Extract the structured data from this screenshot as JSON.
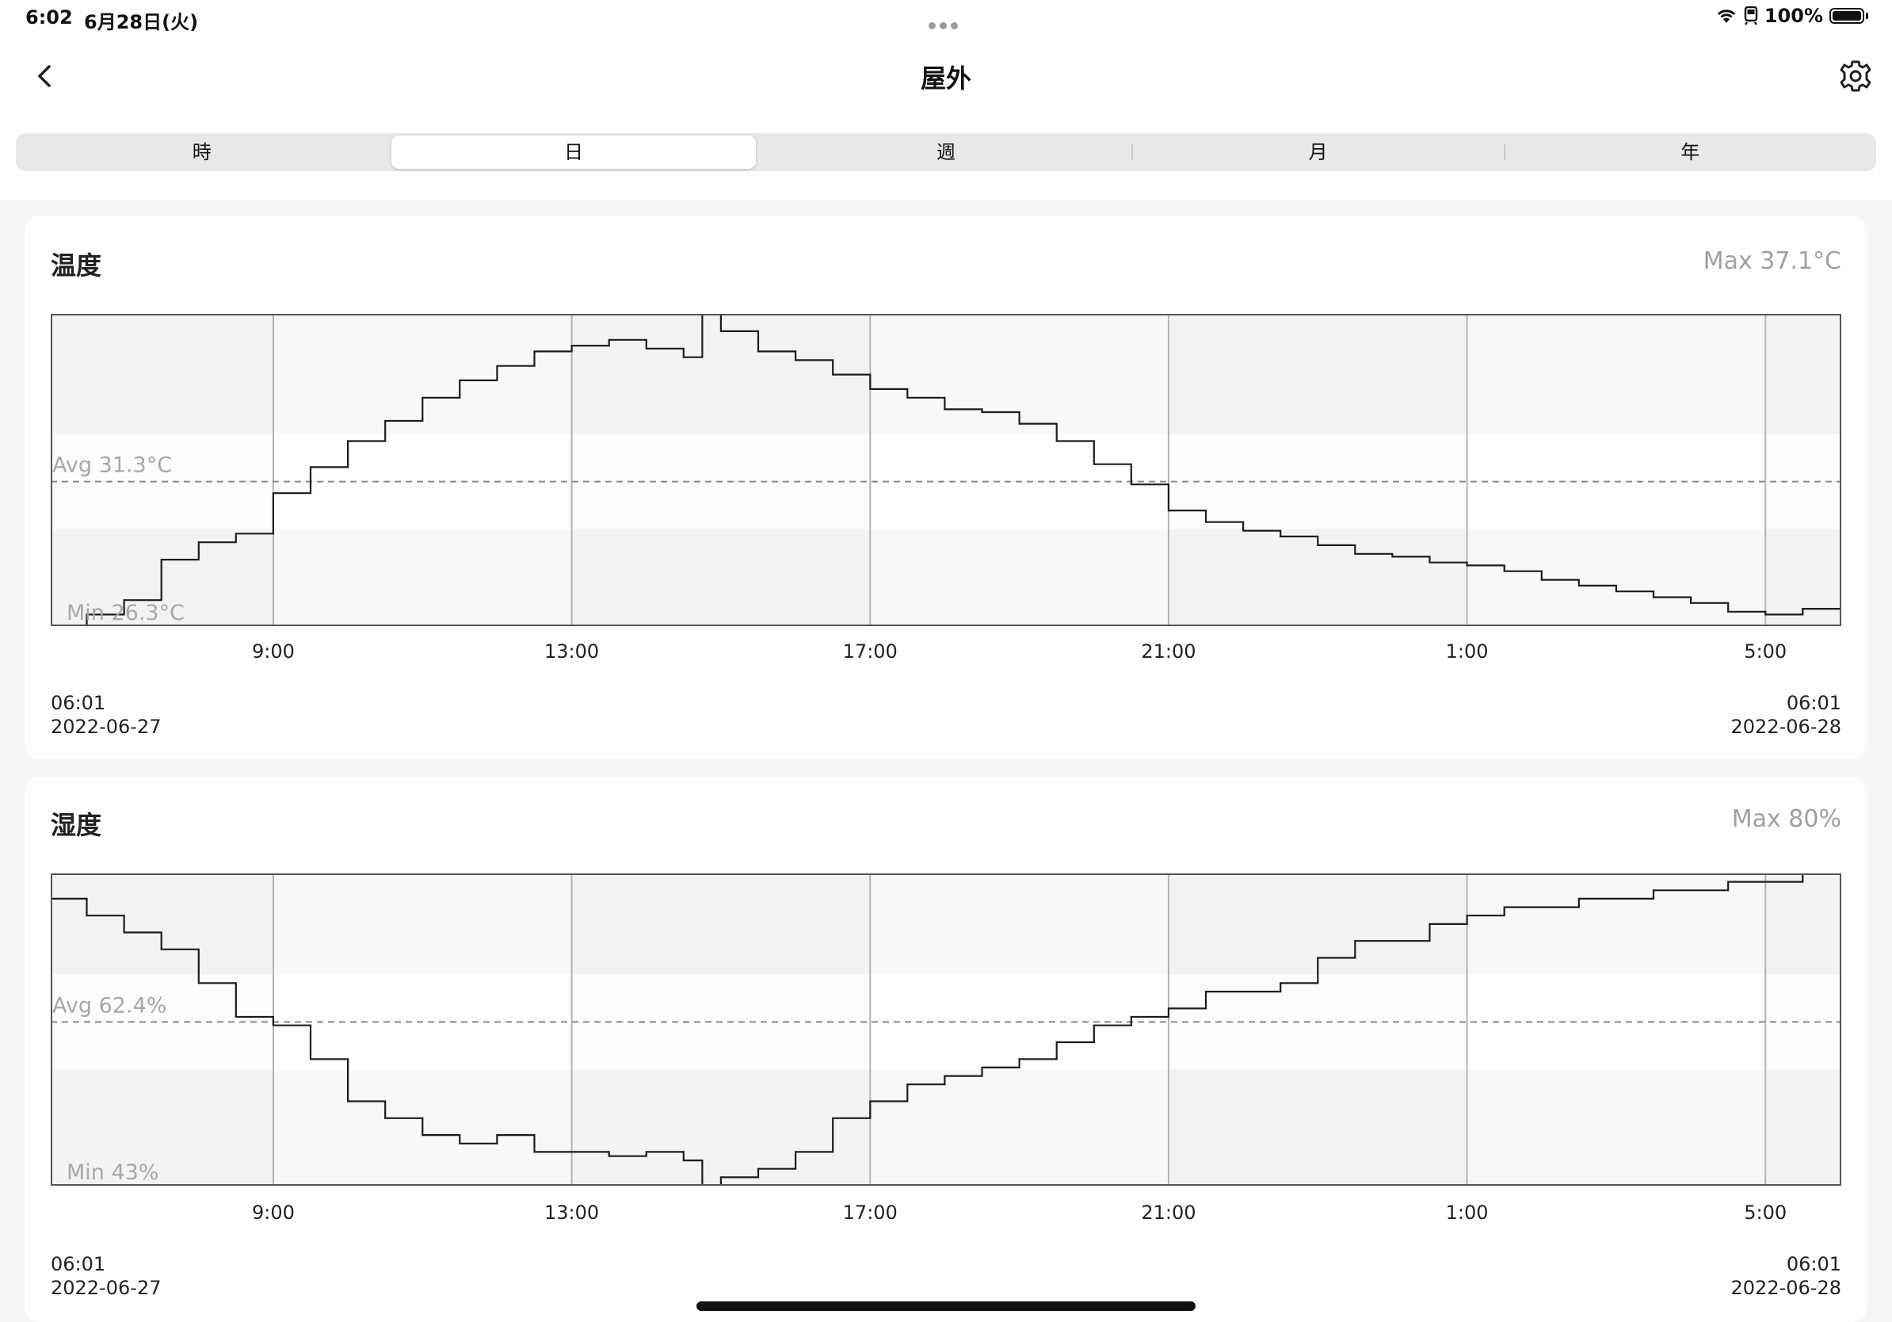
{
  "status": {
    "time": "6:02",
    "date": "6月28日(火)",
    "battery": "100%"
  },
  "nav": {
    "title": "屋外",
    "back_icon": "chevron-left-icon",
    "settings_icon": "gear-icon"
  },
  "tabs": [
    {
      "label": "時"
    },
    {
      "label": "日",
      "selected": true
    },
    {
      "label": "週"
    },
    {
      "label": "月"
    },
    {
      "label": "年"
    }
  ],
  "temperature": {
    "title": "温度",
    "max_label": "Max 37.1°C",
    "avg_label": "Avg 31.3°C",
    "min_label": "Min 26.3°C",
    "start_time": "06:01",
    "start_date": "2022-06-27",
    "end_time": "06:01",
    "end_date": "2022-06-28"
  },
  "humidity": {
    "title": "湿度",
    "max_label": "Max 80%",
    "avg_label": "Avg 62.4%",
    "min_label": "Min 43%",
    "start_time": "06:01",
    "start_date": "2022-06-27",
    "end_time": "06:01",
    "end_date": "2022-06-28"
  },
  "x_ticks": [
    "9:00",
    "13:00",
    "17:00",
    "21:00",
    "1:00",
    "5:00"
  ],
  "chart_data": [
    {
      "type": "line",
      "title": "温度",
      "unit": "°C",
      "x": [
        "06:01",
        "06:30",
        "07:00",
        "07:30",
        "08:00",
        "08:30",
        "09:00",
        "09:30",
        "10:00",
        "10:30",
        "11:00",
        "11:30",
        "12:00",
        "12:30",
        "13:00",
        "13:30",
        "14:00",
        "14:30",
        "14:45",
        "15:00",
        "15:30",
        "16:00",
        "16:30",
        "17:00",
        "17:30",
        "18:00",
        "18:30",
        "19:00",
        "19:30",
        "20:00",
        "20:30",
        "21:00",
        "21:30",
        "22:00",
        "22:30",
        "23:00",
        "23:30",
        "0:00",
        "0:30",
        "1:00",
        "1:30",
        "2:00",
        "2:30",
        "3:00",
        "3:30",
        "4:00",
        "4:30",
        "5:00",
        "5:30",
        "6:01"
      ],
      "y": [
        26.3,
        26.7,
        27.2,
        28.6,
        29.2,
        29.5,
        30.9,
        31.8,
        32.7,
        33.4,
        34.2,
        34.8,
        35.3,
        35.8,
        36.0,
        36.2,
        35.9,
        35.6,
        37.1,
        36.5,
        35.8,
        35.5,
        35.0,
        34.5,
        34.2,
        33.8,
        33.7,
        33.3,
        32.7,
        31.9,
        31.2,
        30.3,
        29.9,
        29.6,
        29.4,
        29.1,
        28.8,
        28.7,
        28.5,
        28.4,
        28.2,
        27.9,
        27.7,
        27.5,
        27.3,
        27.1,
        26.8,
        26.7,
        26.9,
        27.1
      ],
      "avg": 31.3,
      "max": 37.1,
      "min": 26.3,
      "ylim": [
        26.3,
        37.1
      ]
    },
    {
      "type": "line",
      "title": "湿度",
      "unit": "%",
      "x": [
        "06:01",
        "06:30",
        "07:00",
        "07:30",
        "08:00",
        "08:30",
        "09:00",
        "09:30",
        "10:00",
        "10:30",
        "11:00",
        "11:30",
        "12:00",
        "12:30",
        "13:00",
        "13:30",
        "14:00",
        "14:30",
        "14:45",
        "15:00",
        "15:30",
        "16:00",
        "16:30",
        "17:00",
        "17:30",
        "18:00",
        "18:30",
        "19:00",
        "19:30",
        "20:00",
        "20:30",
        "21:00",
        "21:30",
        "22:00",
        "22:30",
        "23:00",
        "23:30",
        "0:00",
        "0:30",
        "1:00",
        "1:30",
        "2:00",
        "2:30",
        "3:00",
        "3:30",
        "4:00",
        "4:30",
        "5:00",
        "5:30",
        "6:01"
      ],
      "y": [
        77,
        75,
        73,
        71,
        67,
        63,
        62,
        58,
        53,
        51,
        49,
        48,
        49,
        47,
        47,
        46.5,
        47,
        46,
        43,
        44,
        45,
        47,
        51,
        53,
        55,
        56,
        57,
        58,
        60,
        62,
        63,
        64,
        66,
        66,
        67,
        70,
        72,
        72,
        74,
        75,
        76,
        76,
        77,
        77,
        78,
        78,
        79,
        79,
        80,
        80
      ],
      "avg": 62.4,
      "max": 80,
      "min": 43,
      "ylim": [
        43,
        80
      ]
    }
  ]
}
